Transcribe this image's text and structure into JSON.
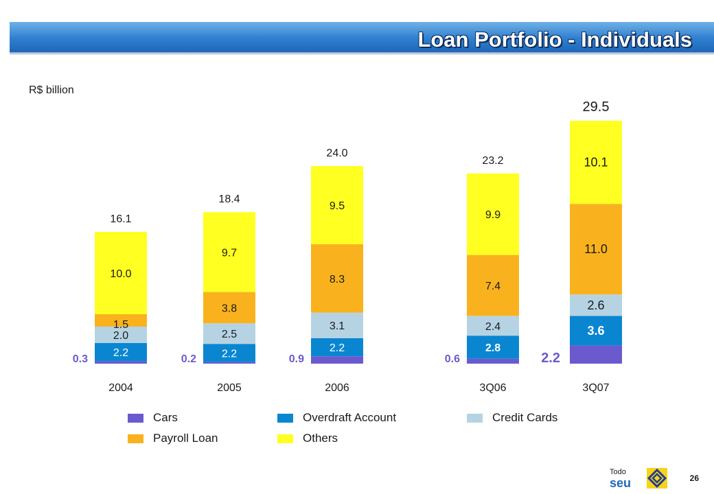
{
  "title": "Loan Portfolio - Individuals",
  "unit_label": "R$ billion",
  "page_number": "26",
  "brand": {
    "small": "Todo",
    "large": "seu"
  },
  "colors": {
    "Cars": "#6a5acd",
    "Overdraft Account": "#0a86d1",
    "Credit Cards": "#b5d3e3",
    "Payroll Loan": "#f9b21e",
    "Others": "#ffff22"
  },
  "legend": [
    "Cars",
    "Overdraft Account",
    "Credit Cards",
    "Payroll Loan",
    "Others"
  ],
  "chart_data": {
    "type": "bar",
    "stacked": true,
    "categories": [
      "2004",
      "2005",
      "2006",
      "3Q06",
      "3Q07"
    ],
    "series": [
      {
        "name": "Cars",
        "values": [
          0.3,
          0.2,
          0.9,
          0.6,
          2.2
        ]
      },
      {
        "name": "Overdraft Account",
        "values": [
          2.2,
          2.2,
          2.2,
          2.8,
          3.6
        ]
      },
      {
        "name": "Credit Cards",
        "values": [
          2.0,
          2.5,
          3.1,
          2.4,
          2.6
        ]
      },
      {
        "name": "Payroll Loan",
        "values": [
          1.5,
          3.8,
          8.3,
          7.4,
          11.0
        ]
      },
      {
        "name": "Others",
        "values": [
          10.0,
          9.7,
          9.5,
          9.9,
          10.1
        ]
      }
    ],
    "totals": [
      16.1,
      18.4,
      24.0,
      23.2,
      29.5
    ],
    "ylim": [
      0,
      30
    ],
    "grid": false
  }
}
